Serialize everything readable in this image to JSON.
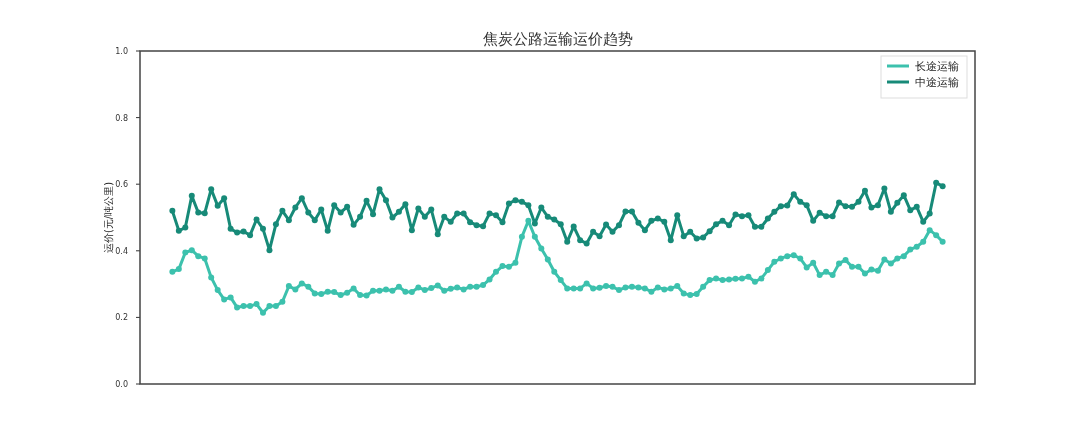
{
  "chart_data": {
    "type": "line",
    "title": "焦炭公路运输运价趋势",
    "ylabel": "运价(元/吨公里)",
    "categories": [
      null,
      null,
      null,
      null,
      null,
      null,
      null,
      null,
      null,
      null,
      null,
      null,
      null,
      null,
      null,
      null,
      null,
      null,
      null,
      null,
      null,
      null,
      null,
      null,
      null,
      null,
      null,
      null,
      null,
      null,
      null,
      null,
      null,
      null,
      null,
      null,
      null,
      null,
      null,
      null,
      null,
      null,
      null,
      null,
      null,
      null,
      null,
      null,
      null,
      null,
      null,
      null,
      null,
      null,
      null,
      null,
      null,
      null,
      null,
      null,
      null,
      null,
      null,
      null,
      null,
      null,
      null,
      null,
      null,
      null,
      null,
      null,
      null,
      null,
      null,
      null,
      null,
      null,
      null,
      null,
      null,
      null,
      null,
      null,
      null,
      null,
      null,
      null,
      null,
      null,
      null,
      null,
      null,
      null,
      null,
      null,
      null,
      null,
      null,
      null,
      null,
      null,
      null,
      null,
      null,
      null,
      null,
      null,
      null,
      null,
      null,
      null,
      null,
      null,
      null,
      null,
      null,
      null,
      null,
      null
    ],
    "series": [
      {
        "name": "长途运输",
        "color": "#3cc1ad",
        "values": [
          0.337,
          0.345,
          0.395,
          0.402,
          0.384,
          0.377,
          0.32,
          0.282,
          0.254,
          0.26,
          0.23,
          0.234,
          0.234,
          0.24,
          0.214,
          0.234,
          0.234,
          0.247,
          0.294,
          0.284,
          0.302,
          0.292,
          0.272,
          0.27,
          0.277,
          0.276,
          0.267,
          0.274,
          0.287,
          0.267,
          0.266,
          0.28,
          0.28,
          0.284,
          0.28,
          0.292,
          0.277,
          0.276,
          0.29,
          0.282,
          0.288,
          0.296,
          0.28,
          0.286,
          0.29,
          0.284,
          0.292,
          0.292,
          0.297,
          0.314,
          0.337,
          0.354,
          0.352,
          0.364,
          0.442,
          0.49,
          0.442,
          0.407,
          0.374,
          0.337,
          0.312,
          0.287,
          0.287,
          0.287,
          0.302,
          0.287,
          0.289,
          0.294,
          0.292,
          0.282,
          0.29,
          0.292,
          0.29,
          0.287,
          0.277,
          0.29,
          0.284,
          0.287,
          0.294,
          0.272,
          0.267,
          0.27,
          0.292,
          0.312,
          0.317,
          0.312,
          0.314,
          0.316,
          0.317,
          0.322,
          0.307,
          0.317,
          0.342,
          0.367,
          0.377,
          0.384,
          0.387,
          0.377,
          0.35,
          0.364,
          0.327,
          0.337,
          0.327,
          0.362,
          0.372,
          0.352,
          0.352,
          0.332,
          0.344,
          0.34,
          0.374,
          0.362,
          0.377,
          0.384,
          0.404,
          0.412,
          0.427,
          0.462,
          0.447,
          0.427
        ]
      },
      {
        "name": "中途运输",
        "color": "#178a78",
        "values": [
          0.52,
          0.46,
          0.47,
          0.565,
          0.515,
          0.513,
          0.585,
          0.535,
          0.558,
          0.466,
          0.455,
          0.458,
          0.447,
          0.494,
          0.466,
          0.402,
          0.48,
          0.52,
          0.492,
          0.53,
          0.558,
          0.515,
          0.492,
          0.524,
          0.46,
          0.537,
          0.515,
          0.532,
          0.478,
          0.502,
          0.55,
          0.51,
          0.585,
          0.552,
          0.5,
          0.517,
          0.54,
          0.462,
          0.527,
          0.502,
          0.524,
          0.45,
          0.502,
          0.487,
          0.512,
          0.512,
          0.486,
          0.477,
          0.474,
          0.512,
          0.507,
          0.486,
          0.542,
          0.552,
          0.547,
          0.537,
          0.482,
          0.53,
          0.502,
          0.494,
          0.48,
          0.427,
          0.473,
          0.432,
          0.422,
          0.457,
          0.444,
          0.479,
          0.457,
          0.477,
          0.518,
          0.518,
          0.484,
          0.462,
          0.49,
          0.497,
          0.487,
          0.432,
          0.507,
          0.444,
          0.457,
          0.437,
          0.44,
          0.459,
          0.48,
          0.49,
          0.477,
          0.509,
          0.504,
          0.507,
          0.472,
          0.472,
          0.497,
          0.517,
          0.534,
          0.536,
          0.57,
          0.547,
          0.537,
          0.49,
          0.514,
          0.504,
          0.504,
          0.545,
          0.534,
          0.532,
          0.547,
          0.58,
          0.53,
          0.537,
          0.587,
          0.517,
          0.544,
          0.567,
          0.522,
          0.532,
          0.487,
          0.512,
          0.604,
          0.594
        ]
      }
    ],
    "ylim": [
      0,
      1
    ],
    "yticks": [
      {
        "value": 0,
        "label": "0.0"
      },
      {
        "value": 0.2,
        "label": "0.2"
      },
      {
        "value": 0.4,
        "label": "0.4"
      },
      {
        "value": 0.6,
        "label": "0.6"
      },
      {
        "value": 0.8,
        "label": "0.8"
      },
      {
        "value": 1,
        "label": "1.0"
      }
    ],
    "legend": "top right",
    "marker": "circle"
  }
}
